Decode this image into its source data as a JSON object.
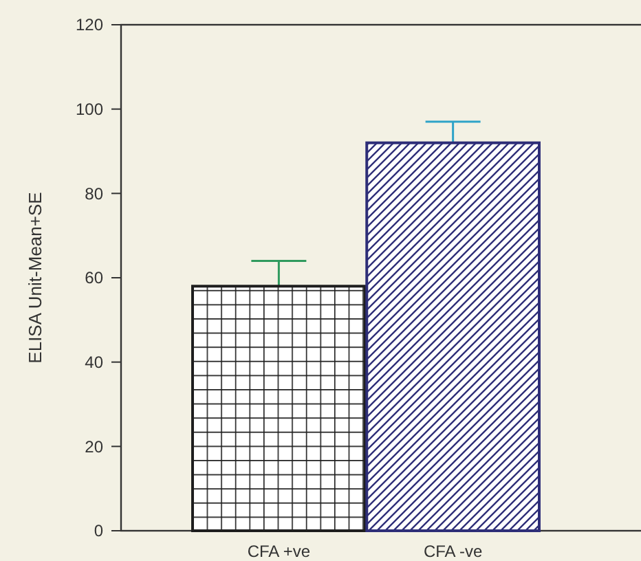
{
  "chart_data": {
    "type": "bar",
    "ylabel": "ELISA Unit-Mean+SE",
    "categories": [
      "CFA +ve",
      "CFA -ve"
    ],
    "values": [
      58,
      92
    ],
    "errors": [
      [
        58,
        64
      ],
      [
        92,
        97
      ]
    ],
    "colors": [
      "#1e1e1e",
      "#2e2e78"
    ],
    "ylim": [
      0,
      120
    ],
    "yticks": [
      0,
      20,
      40,
      60,
      80,
      100,
      120
    ],
    "grid": false
  }
}
